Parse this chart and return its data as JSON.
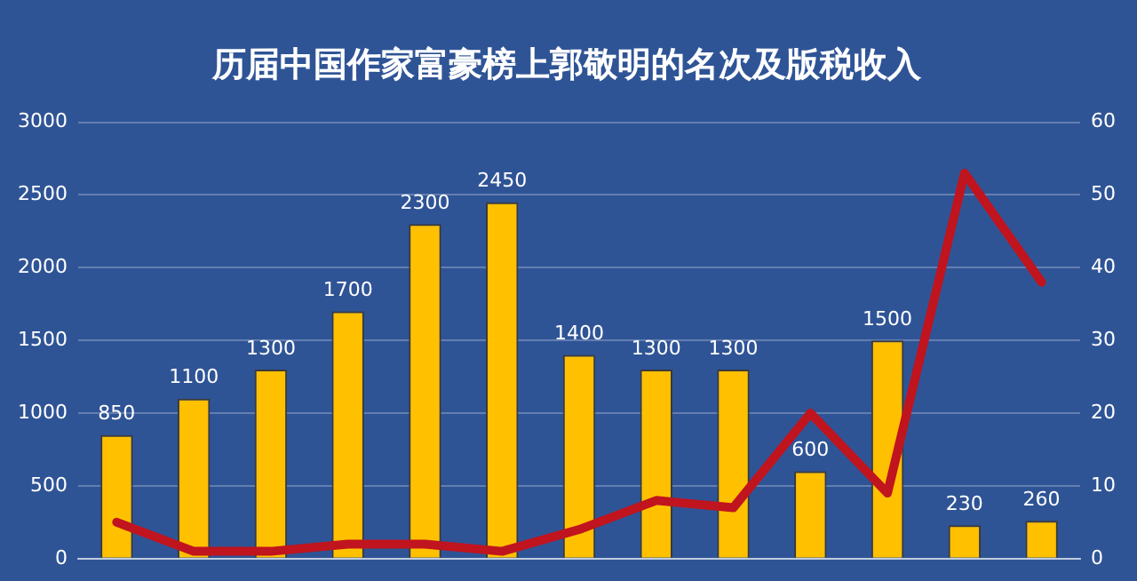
{
  "chart_data": {
    "type": "bar",
    "title": "历届中国作家富豪榜上郭敬明的名次及版税收入",
    "categories": [
      null,
      null,
      null,
      null,
      null,
      null,
      null,
      null,
      null,
      null,
      null,
      null,
      null
    ],
    "series": [
      {
        "color": "#ffc000",
        "values": [
          850,
          1100,
          1300,
          1700,
          2300,
          2450,
          1400,
          1300,
          1300,
          600,
          1500,
          230,
          260
        ],
        "value_labels": [
          "850",
          "1100",
          "1300",
          "1700",
          "2300",
          "2450",
          "1400",
          "1300",
          "1300",
          "600",
          "1500",
          "230",
          "260"
        ]
      },
      {
        "type": "line",
        "axis": "y2",
        "color": "#c0141e",
        "values": [
          5,
          1,
          1,
          2,
          2,
          1,
          4,
          8,
          7,
          20,
          9,
          53,
          38
        ]
      }
    ],
    "ylim": [
      0,
      3000
    ],
    "yticks": [
      0,
      500,
      1000,
      1500,
      2000,
      2500,
      3000
    ],
    "y2lim": [
      0,
      60
    ],
    "y2ticks": [
      0,
      10,
      20,
      30,
      40,
      50,
      60
    ],
    "grid": "y",
    "legend": false,
    "marker": "none",
    "line_style": "solid"
  }
}
